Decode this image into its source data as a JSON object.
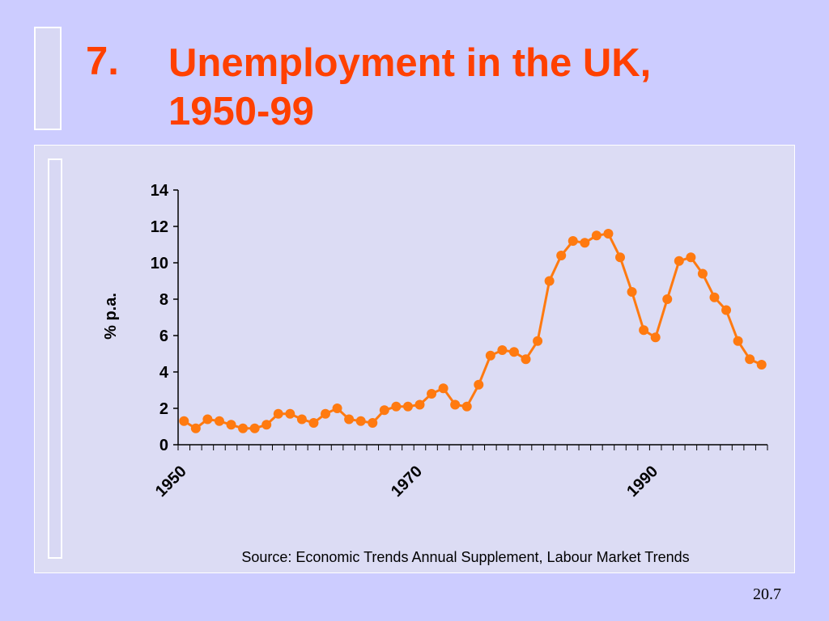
{
  "slide": {
    "number_label": "7.",
    "title": "Unemployment in the UK, 1950-99",
    "page_number": "20.7"
  },
  "colors": {
    "background": "#ccccff",
    "title": "#ff4000",
    "series": "#ff7a10"
  },
  "chart_data": {
    "type": "line",
    "title": "",
    "xlabel": "",
    "ylabel": "% p.a.",
    "ylim": [
      0,
      14
    ],
    "yticks": [
      0,
      2,
      4,
      6,
      8,
      10,
      12,
      14
    ],
    "xlim": [
      1950,
      1999
    ],
    "xtick_labels": [
      1950,
      1970,
      1990
    ],
    "grid": false,
    "source": "Source: Economic Trends Annual Supplement, Labour Market Trends",
    "series": [
      {
        "x": [
          1950,
          1951,
          1952,
          1953,
          1954,
          1955,
          1956,
          1957,
          1958,
          1959,
          1960,
          1961,
          1962,
          1963,
          1964,
          1965,
          1966,
          1967,
          1968,
          1969,
          1970,
          1971,
          1972,
          1973,
          1974,
          1975,
          1976,
          1977,
          1978,
          1979,
          1980,
          1981,
          1982,
          1983,
          1984,
          1985,
          1986,
          1987,
          1988,
          1989,
          1990,
          1991,
          1992,
          1993,
          1994,
          1995,
          1996,
          1997,
          1998,
          1999
        ],
        "values": [
          1.3,
          0.9,
          1.4,
          1.3,
          1.1,
          0.9,
          0.9,
          1.1,
          1.7,
          1.7,
          1.4,
          1.2,
          1.7,
          2.0,
          1.4,
          1.3,
          1.2,
          1.9,
          2.1,
          2.1,
          2.2,
          2.8,
          3.1,
          2.2,
          2.1,
          3.3,
          4.9,
          5.2,
          5.1,
          4.7,
          5.7,
          9.0,
          10.4,
          11.2,
          11.1,
          11.5,
          11.6,
          10.3,
          8.4,
          6.3,
          5.9,
          8.0,
          10.1,
          10.3,
          9.4,
          8.1,
          7.4,
          5.7,
          4.7,
          4.4
        ]
      }
    ]
  }
}
